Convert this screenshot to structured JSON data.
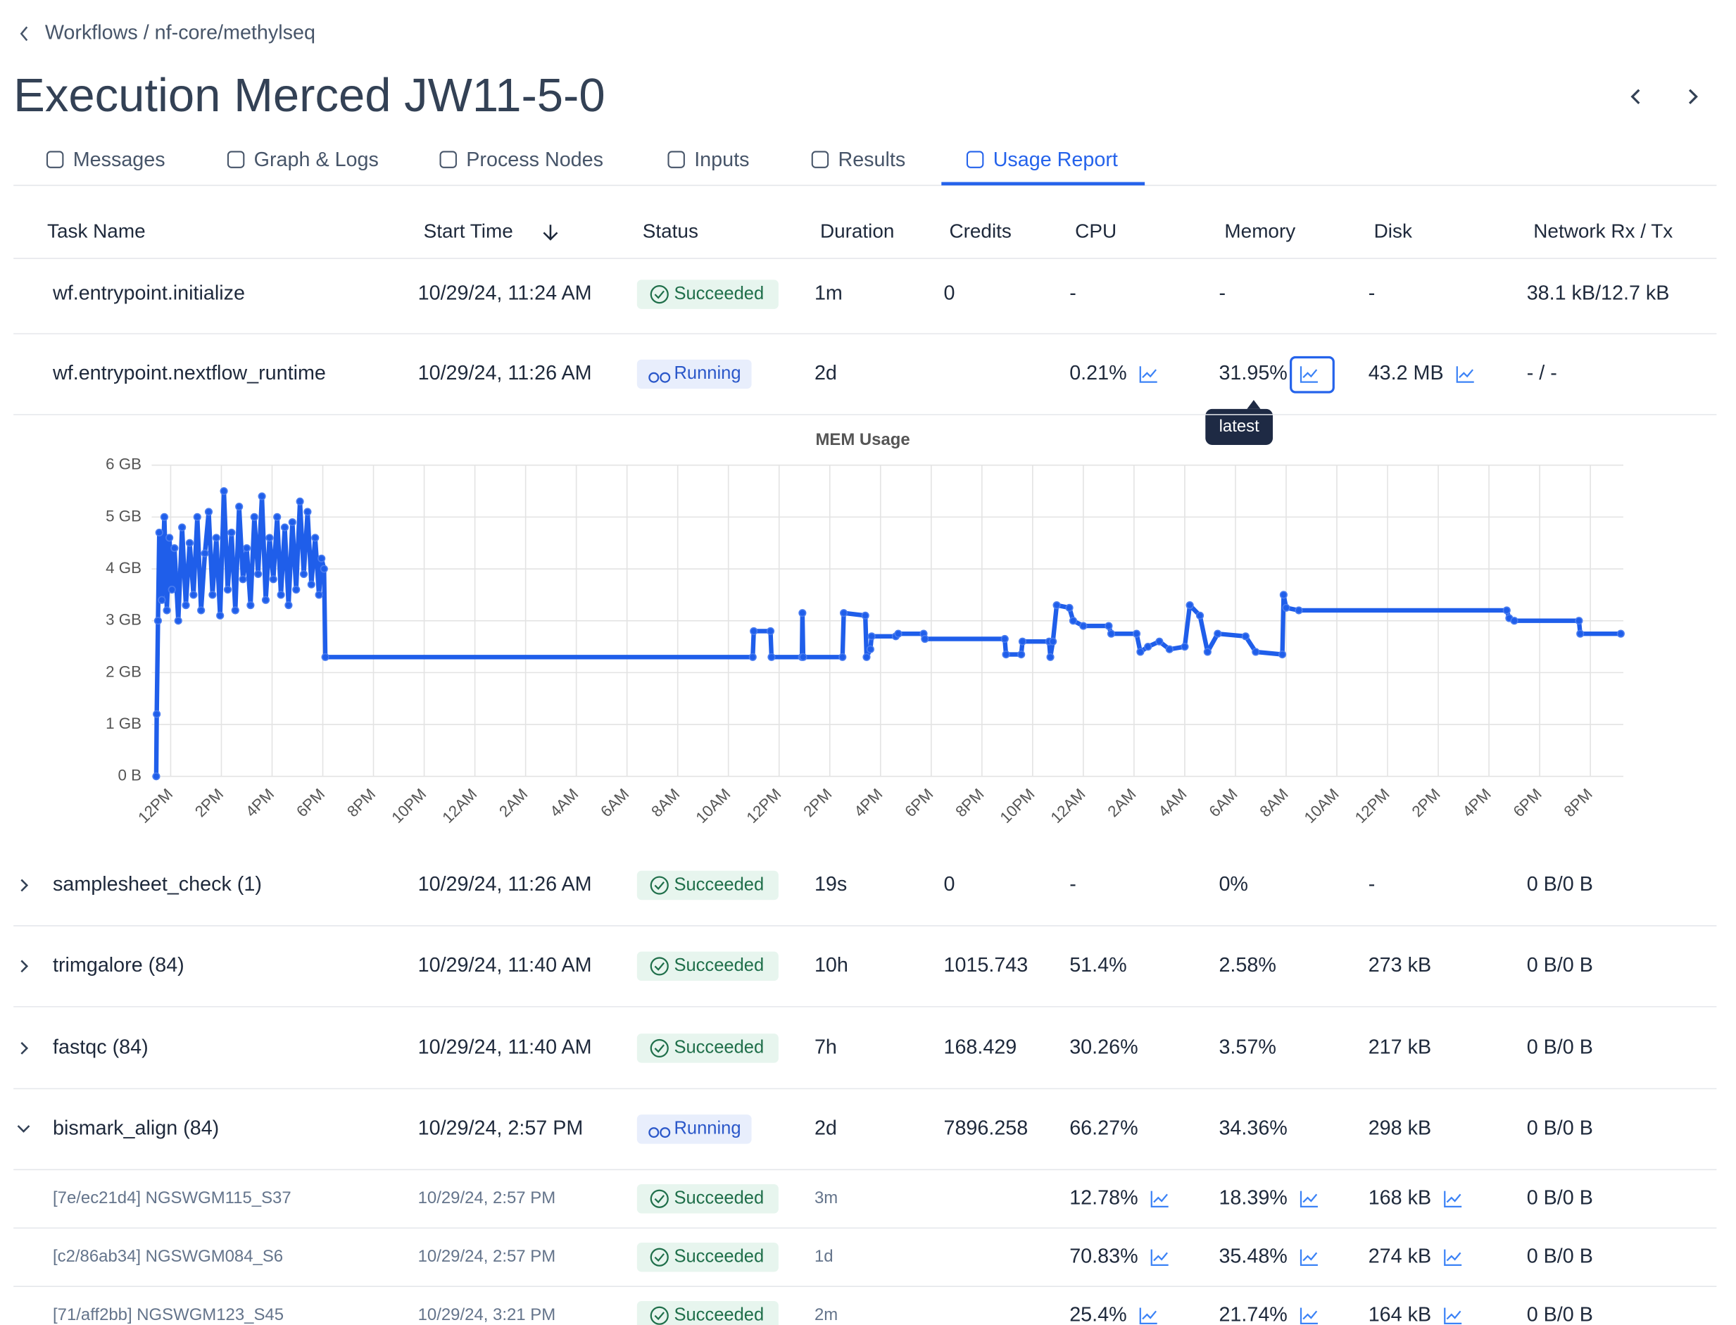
{
  "breadcrumb": "Workflows / nf-core/methylseq",
  "title": "Execution Merced JW11-5-0",
  "tabs": [
    "Messages",
    "Graph & Logs",
    "Process Nodes",
    "Inputs",
    "Results",
    "Usage Report"
  ],
  "columns": [
    "Task Name",
    "Start Time",
    "Status",
    "Duration",
    "Credits",
    "CPU",
    "Memory",
    "Disk",
    "Network Rx / Tx"
  ],
  "rows": [
    [
      "wf.entrypoint.initialize",
      "10/29/24, 11:24 AM",
      "Succeeded",
      "1m",
      "0",
      "-",
      "-",
      "-",
      "38.1 kB/12.7 kB"
    ],
    [
      "wf.entrypoint.nextflow_runtime",
      "10/29/24, 11:26 AM",
      "Running",
      "2d",
      null,
      "0.21%",
      "31.95%",
      "43.2 MB",
      "- / -"
    ],
    [
      "samplesheet_check (1)",
      "10/29/24, 11:26 AM",
      "Succeeded",
      "19s",
      "0",
      "-",
      "0%",
      "-",
      "0 B/0 B"
    ],
    [
      "trimgalore (84)",
      "10/29/24, 11:40 AM",
      "Succeeded",
      "10h",
      "1015.743",
      "51.4%",
      "2.58%",
      "273 kB",
      "0 B/0 B"
    ],
    [
      "fastqc (84)",
      "10/29/24, 11:40 AM",
      "Succeeded",
      "7h",
      "168.429",
      "30.26%",
      "3.57%",
      "217 kB",
      "0 B/0 B"
    ],
    [
      "bismark_align (84)",
      "10/29/24, 2:57 PM",
      "Running",
      "2d",
      "7896.258",
      "66.27%",
      "34.36%",
      "298 kB",
      "0 B/0 B"
    ]
  ],
  "subrows": [
    [
      "[7e/ec21d4] NGSWGM115_S37",
      "10/29/24, 2:57 PM",
      "Succeeded",
      "3m",
      null,
      "12.78%",
      "18.39%",
      "168 kB",
      "0 B/0 B"
    ],
    [
      "[c2/86ab34] NGSWGM084_S6",
      "10/29/24, 2:57 PM",
      "Succeeded",
      "1d",
      null,
      "70.83%",
      "35.48%",
      "274 kB",
      "0 B/0 B"
    ],
    [
      "[71/aff2bb] NGSWGM123_S45",
      "10/29/24, 3:21 PM",
      "Succeeded",
      "2m",
      null,
      "25.4%",
      "21.74%",
      "164 kB",
      "0 B/0 B"
    ]
  ],
  "tooltip": "latest",
  "chart": {
    "type": "line",
    "title": "MEM Usage",
    "color": "#1f5eea",
    "grid": true,
    "xlim": [
      11.25,
      69.3
    ],
    "ylim": [
      0,
      6
    ],
    "yticks": [
      {
        "value": 0,
        "label": "0 B"
      },
      {
        "value": 1,
        "label": "1 GB"
      },
      {
        "value": 2,
        "label": "2 GB"
      },
      {
        "value": 3,
        "label": "3 GB"
      },
      {
        "value": 4,
        "label": "4 GB"
      },
      {
        "value": 5,
        "label": "5 GB"
      },
      {
        "value": 6,
        "label": "6 GB"
      }
    ],
    "xticks": [
      {
        "value": 12,
        "label": "12PM"
      },
      {
        "value": 14,
        "label": "2PM"
      },
      {
        "value": 16,
        "label": "4PM"
      },
      {
        "value": 18,
        "label": "6PM"
      },
      {
        "value": 20,
        "label": "8PM"
      },
      {
        "value": 22,
        "label": "10PM"
      },
      {
        "value": 24,
        "label": "12AM"
      },
      {
        "value": 26,
        "label": "2AM"
      },
      {
        "value": 28,
        "label": "4AM"
      },
      {
        "value": 30,
        "label": "6AM"
      },
      {
        "value": 32,
        "label": "8AM"
      },
      {
        "value": 34,
        "label": "10AM"
      },
      {
        "value": 36,
        "label": "12PM"
      },
      {
        "value": 38,
        "label": "2PM"
      },
      {
        "value": 40,
        "label": "4PM"
      },
      {
        "value": 42,
        "label": "6PM"
      },
      {
        "value": 44,
        "label": "8PM"
      },
      {
        "value": 46,
        "label": "10PM"
      },
      {
        "value": 48,
        "label": "12AM"
      },
      {
        "value": 50,
        "label": "2AM"
      },
      {
        "value": 52,
        "label": "4AM"
      },
      {
        "value": 54,
        "label": "6AM"
      },
      {
        "value": 56,
        "label": "8AM"
      },
      {
        "value": 58,
        "label": "10AM"
      },
      {
        "value": 60,
        "label": "12PM"
      },
      {
        "value": 62,
        "label": "2PM"
      },
      {
        "value": 64,
        "label": "4PM"
      },
      {
        "value": 66,
        "label": "6PM"
      },
      {
        "value": 68,
        "label": "8PM"
      }
    ],
    "x": [
      11.43,
      11.45,
      11.5,
      11.55,
      11.65,
      11.75,
      11.85,
      11.95,
      12.05,
      12.15,
      12.3,
      12.45,
      12.6,
      12.75,
      12.9,
      13.05,
      13.2,
      13.35,
      13.5,
      13.65,
      13.8,
      13.95,
      14.1,
      14.25,
      14.4,
      14.55,
      14.7,
      14.85,
      15.0,
      15.15,
      15.3,
      15.45,
      15.6,
      15.75,
      15.9,
      16.05,
      16.2,
      16.35,
      16.5,
      16.65,
      16.8,
      16.95,
      17.1,
      17.25,
      17.4,
      17.55,
      17.7,
      17.85,
      17.95,
      18.05,
      18.1,
      34.96,
      35.0,
      35.66,
      35.7,
      36.9,
      36.92,
      36.95,
      38.5,
      38.55,
      39.4,
      39.45,
      39.6,
      39.65,
      40.6,
      40.7,
      41.7,
      41.75,
      44.9,
      44.95,
      45.55,
      45.6,
      46.65,
      46.7,
      46.8,
      46.95,
      47.45,
      47.6,
      48.0,
      49.0,
      49.1,
      50.1,
      50.25,
      50.55,
      51.0,
      51.4,
      52.0,
      52.2,
      52.6,
      52.9,
      53.3,
      54.4,
      54.8,
      55.85,
      55.9,
      56.0,
      56.5,
      64.7,
      64.8,
      65.0,
      67.55,
      67.6,
      69.2
    ],
    "values": [
      0,
      1.2,
      3.0,
      4.7,
      3.4,
      5.0,
      3.2,
      4.6,
      3.6,
      4.4,
      3.0,
      4.8,
      3.3,
      4.5,
      3.5,
      5.0,
      3.2,
      4.3,
      5.1,
      3.5,
      4.6,
      3.1,
      5.5,
      3.6,
      4.7,
      3.2,
      5.2,
      3.8,
      4.4,
      3.3,
      5.0,
      3.9,
      5.4,
      3.4,
      4.6,
      3.8,
      5.0,
      3.5,
      4.8,
      3.3,
      4.9,
      3.6,
      5.3,
      3.9,
      5.1,
      3.7,
      4.6,
      3.5,
      4.2,
      4.0,
      2.3,
      2.3,
      2.8,
      2.8,
      2.3,
      2.3,
      3.15,
      2.3,
      2.3,
      3.15,
      3.1,
      2.3,
      2.45,
      2.7,
      2.7,
      2.75,
      2.75,
      2.65,
      2.65,
      2.35,
      2.35,
      2.6,
      2.6,
      2.3,
      2.6,
      3.3,
      3.25,
      3.0,
      2.9,
      2.9,
      2.75,
      2.75,
      2.4,
      2.5,
      2.6,
      2.45,
      2.5,
      3.3,
      3.1,
      2.4,
      2.75,
      2.7,
      2.4,
      2.35,
      3.5,
      3.25,
      3.2,
      3.2,
      3.05,
      3.0,
      3.0,
      2.75,
      2.75
    ]
  }
}
